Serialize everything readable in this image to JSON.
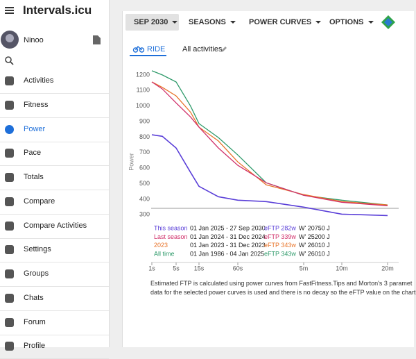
{
  "sidebar": {
    "app_title": "Intervals.icu",
    "user": "Ninoo",
    "nav": [
      "Activities",
      "Fitness",
      "Power",
      "Pace",
      "Totals",
      "Compare",
      "Compare Activities",
      "Settings",
      "Groups",
      "Chats",
      "Forum",
      "Profile"
    ]
  },
  "toolbar": {
    "buttons": [
      "SEP 2030",
      "SEASONS",
      "POWER CURVES",
      "OPTIONS"
    ]
  },
  "tabs": {
    "sport": "RIDE",
    "filter": "All activities"
  },
  "chart_data": {
    "type": "line",
    "y_label": "Power",
    "x": [
      1,
      2,
      5,
      10,
      15,
      30,
      60,
      120,
      300,
      600,
      1200
    ],
    "xlim": [
      1,
      1200
    ],
    "log_x": true,
    "xticks": [
      {
        "value": 1,
        "label": "1s"
      },
      {
        "value": 5,
        "label": "5s"
      },
      {
        "value": 15,
        "label": "15s"
      },
      {
        "value": 60,
        "label": "60s"
      },
      {
        "value": 300,
        "label": "5m"
      },
      {
        "value": 600,
        "label": "10m"
      },
      {
        "value": 1200,
        "label": "20m"
      }
    ],
    "ylim": [
      270,
      1240
    ],
    "yticks": [
      300,
      400,
      500,
      600,
      700,
      800,
      900,
      1000,
      1100,
      1200
    ],
    "series": [
      {
        "name": "This season",
        "color": "#5a3fd8",
        "range": "01 Jan 2025 - 27 Sep 2030",
        "eftp": "eFTP 282w",
        "wprime": "W' 20750 J",
        "values": [
          815,
          805,
          730,
          573,
          483,
          416,
          394,
          385,
          349,
          304,
          295
        ]
      },
      {
        "name": "Last season",
        "color": "#d0306a",
        "range": "01 Jan 2024 - 31 Dec 2024",
        "eftp": "eFTP 339w",
        "wprime": "W' 25200 J",
        "values": [
          1155,
          1110,
          1020,
          930,
          864,
          730,
          618,
          506,
          425,
          380,
          358
        ]
      },
      {
        "name": "2023",
        "color": "#e8742a",
        "range": "01 Jan 2023 - 31 Dec 2023",
        "eftp": "eFTP 343w",
        "wprime": "W' 26010 J",
        "values": [
          1155,
          1120,
          1065,
          960,
          864,
          775,
          640,
          493,
          430,
          385,
          363
        ]
      },
      {
        "name": "All time",
        "color": "#2e9a6a",
        "range": "01 Jan 1986 - 04 Jan 2025",
        "eftp": "eFTP 343w",
        "wprime": "W' 26010 J",
        "values": [
          1227,
          1200,
          1155,
          1000,
          887,
          797,
          685,
          506,
          425,
          394,
          363
        ]
      }
    ]
  },
  "footnote": [
    "Estimated FTP is calculated using power curves from FastFitness.Tips and Morton's 3 paramet",
    "data for the selected power curves is used and there is no decay so the eFTP value on the chart"
  ]
}
